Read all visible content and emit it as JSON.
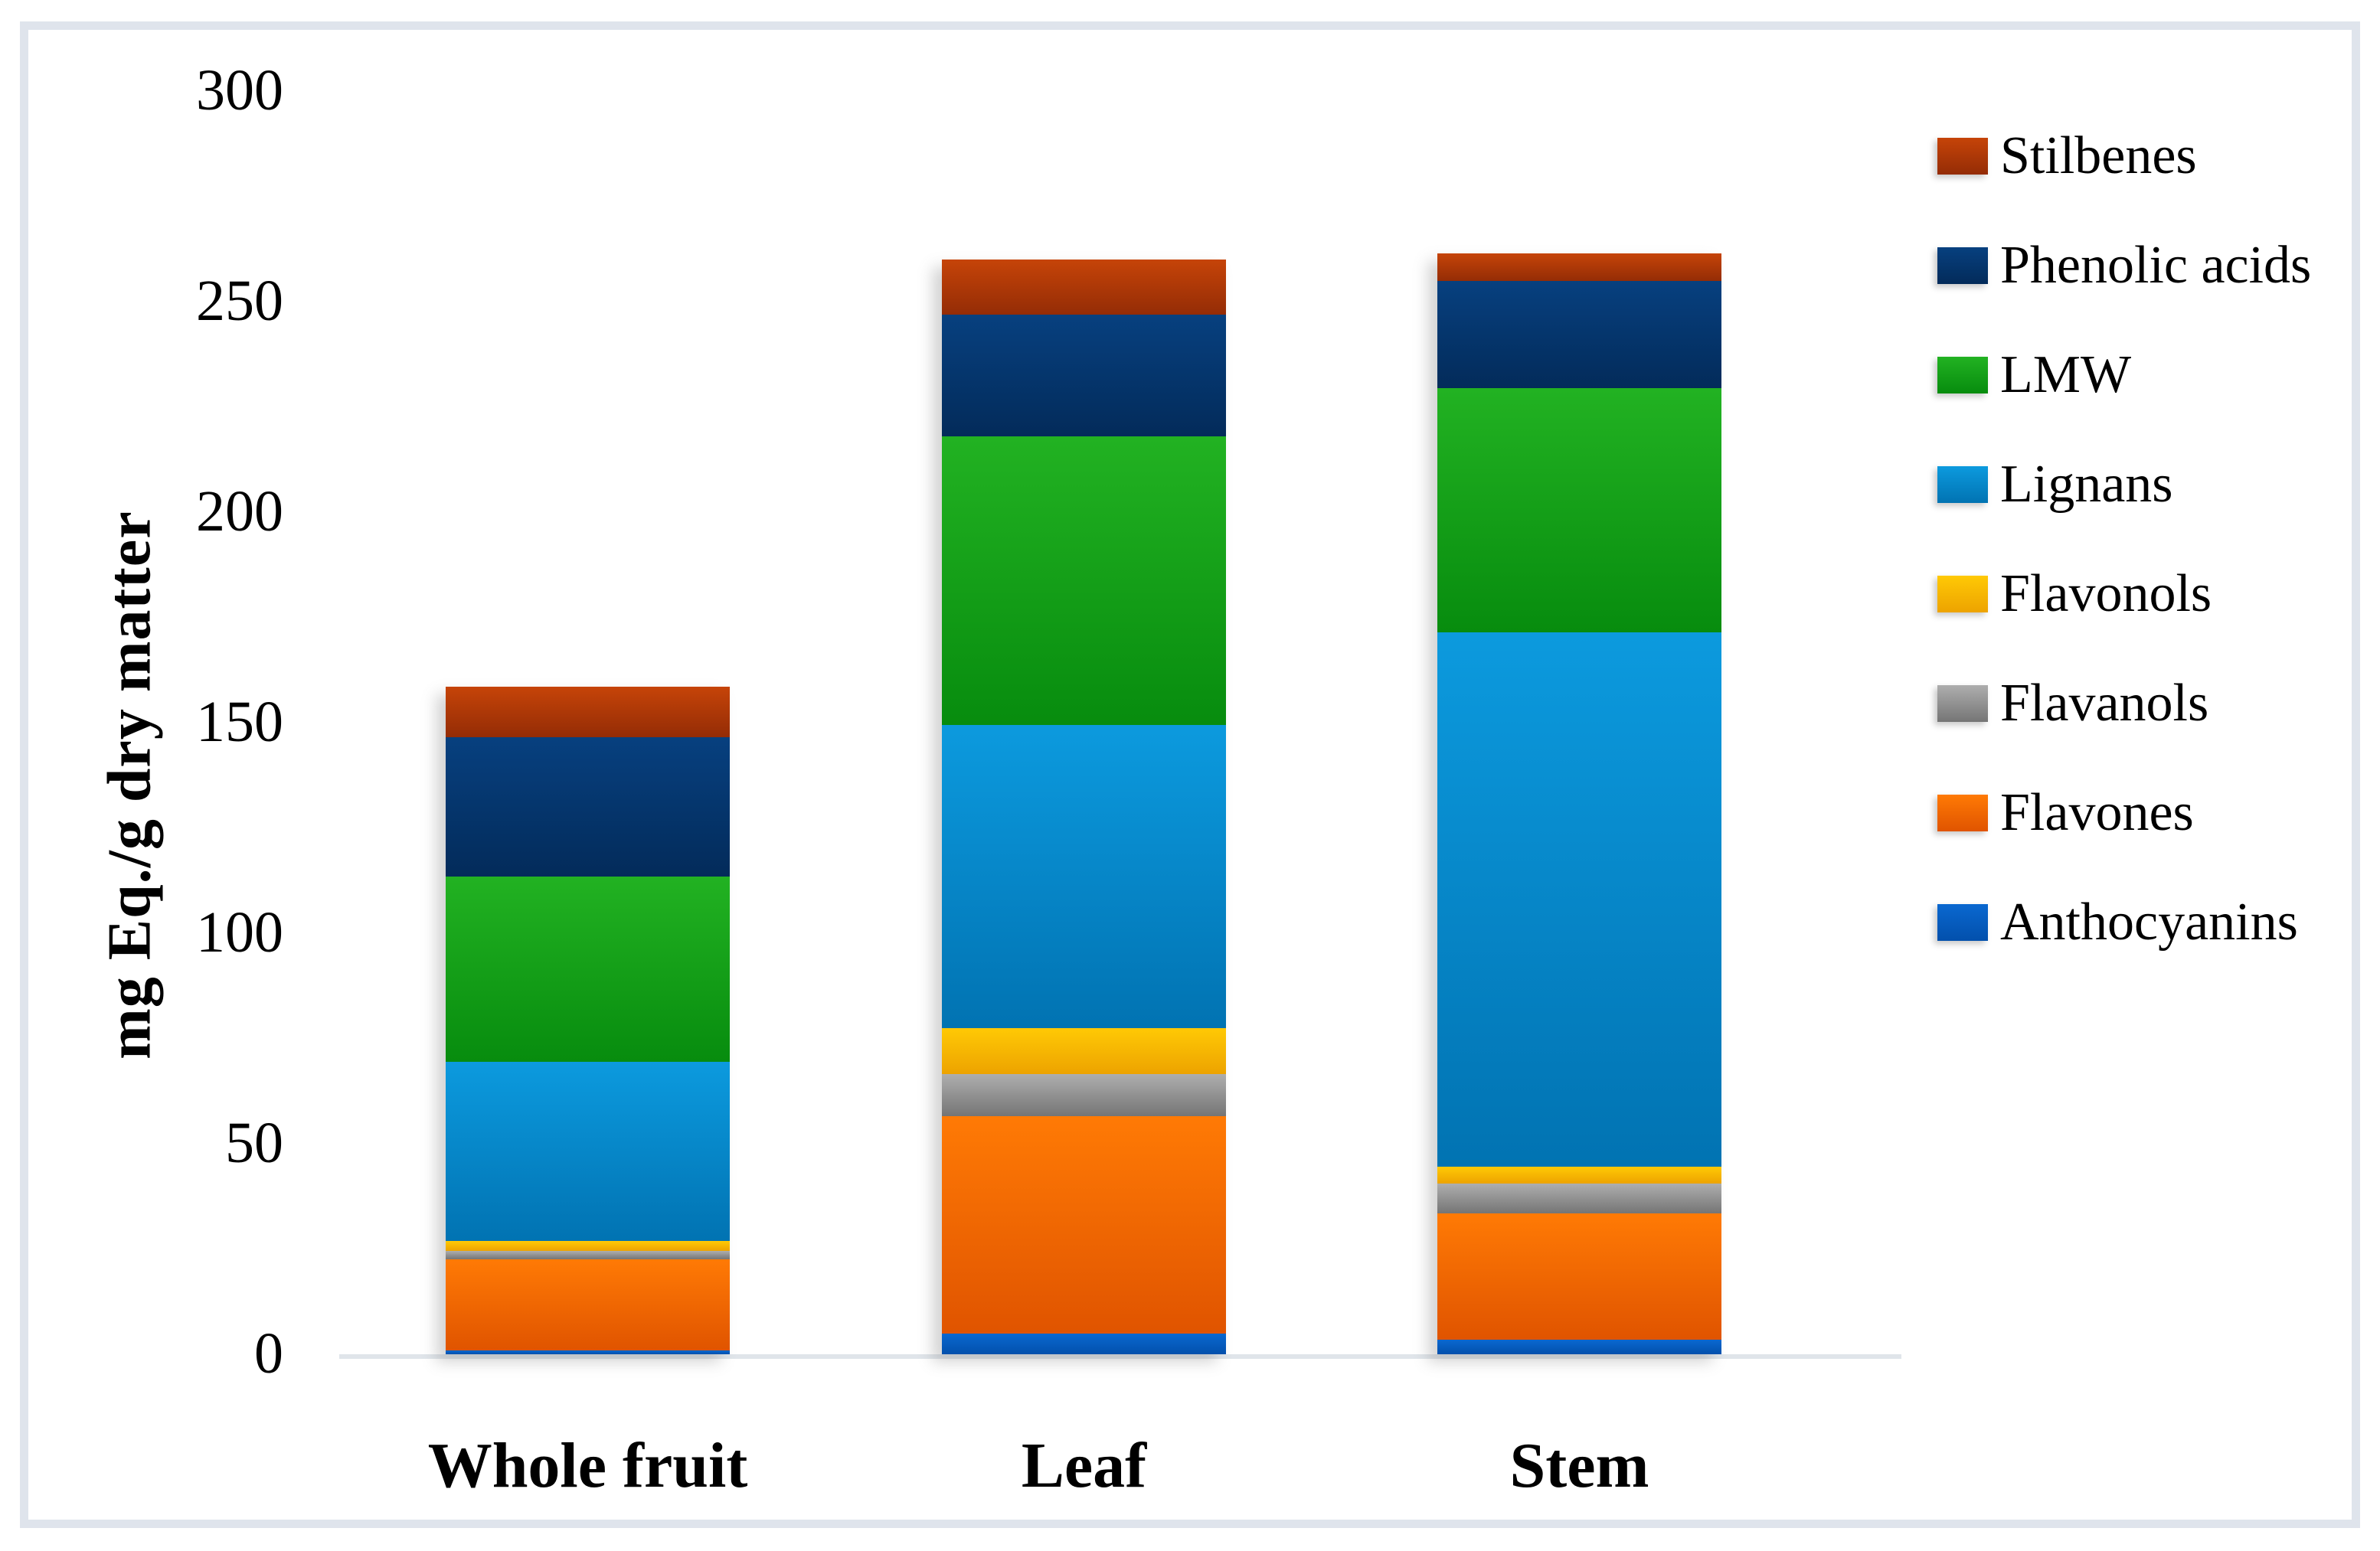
{
  "chart_data": {
    "type": "bar",
    "stacked": true,
    "title": "",
    "xlabel": "",
    "ylabel": "mg Eq./g dry matter",
    "ylim": [
      0,
      300
    ],
    "yticks": [
      0,
      50,
      100,
      150,
      200,
      250,
      300
    ],
    "grid": false,
    "legend_position": "right",
    "categories": [
      "Whole fruit",
      "Leaf",
      "Stem"
    ],
    "series": [
      {
        "name": "Anthocyanins",
        "values": [
          1,
          5,
          3.5
        ],
        "color_top": "#0a68d0",
        "color_bottom": "#0250ac"
      },
      {
        "name": "Flavones",
        "values": [
          21.5,
          51.5,
          30
        ],
        "color_top": "#ff7a05",
        "color_bottom": "#e05400"
      },
      {
        "name": "Flavanols",
        "values": [
          2,
          10,
          7
        ],
        "color_top": "#aeaeae",
        "color_bottom": "#757575"
      },
      {
        "name": "Flavonols",
        "values": [
          2.5,
          11,
          4
        ],
        "color_top": "#ffc905",
        "color_bottom": "#eda300"
      },
      {
        "name": "Lignans",
        "values": [
          42.5,
          72,
          127
        ],
        "color_top": "#0c9ade",
        "color_bottom": "#0173b2"
      },
      {
        "name": "LMW",
        "values": [
          44,
          68.5,
          58
        ],
        "color_top": "#22b222",
        "color_bottom": "#078c0e"
      },
      {
        "name": "Phenolic acids",
        "values": [
          33,
          29,
          25.5
        ],
        "color_top": "#07407f",
        "color_bottom": "#032b5a"
      },
      {
        "name": "Stilbenes",
        "values": [
          12,
          13,
          6.5
        ],
        "color_top": "#c64408",
        "color_bottom": "#942c06"
      }
    ],
    "totals": [
      158.5,
      260,
      261.5
    ],
    "legend_order": [
      "Stilbenes",
      "Phenolic acids",
      "LMW",
      "Lignans",
      "Flavonols",
      "Flavanols",
      "Flavones",
      "Anthocyanins"
    ],
    "frame_color": "#dfe4ec",
    "axis_line_color": "#e0e5ea"
  }
}
